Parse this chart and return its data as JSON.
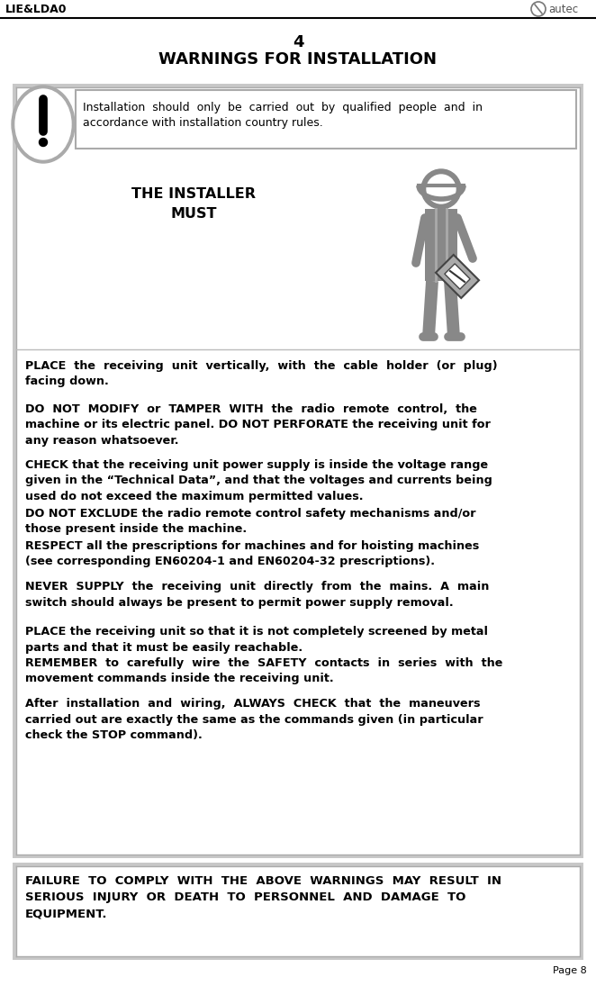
{
  "page_label": "LIE&LDA0",
  "logo_text": "autec",
  "page_number": "Page 8",
  "chapter_number": "4",
  "title": "WARNINGS FOR INSTALLATION",
  "install_note_line1": "Installation  should  only  be  carried  out  by  qualified  people  and  in",
  "install_note_line2": "accordance with installation country rules.",
  "installer_label_line1": "THE INSTALLER",
  "installer_label_line2": "MUST",
  "warnings": [
    "PLACE  the  receiving  unit  vertically,  with  the  cable  holder  (or  plug)\nfacing down.",
    "DO  NOT  MODIFY  or  TAMPER  WITH  the  radio  remote  control,  the\nmachine or its electric panel. DO NOT PERFORATE the receiving unit for\nany reason whatsoever.",
    "CHECK that the receiving unit power supply is inside the voltage range\ngiven in the “Technical Data”, and that the voltages and currents being\nused do not exceed the maximum permitted values.",
    "DO NOT EXCLUDE the radio remote control safety mechanisms and/or\nthose present inside the machine.",
    "RESPECT all the prescriptions for machines and for hoisting machines\n(see corresponding EN60204-1 and EN60204-32 prescriptions).",
    "NEVER  SUPPLY  the  receiving  unit  directly  from  the  mains.  A  main\nswitch should always be present to permit power supply removal.",
    "PLACE the receiving unit so that it is not completely screened by metal\nparts and that it must be easily reachable.",
    "REMEMBER  to  carefully  wire  the  SAFETY  contacts  in  series  with  the\nmovement commands inside the receiving unit.",
    "After  installation  and  wiring,  ALWAYS  CHECK  that  the  maneuvers\ncarried out are exactly the same as the commands given (in particular\ncheck the STOP command)."
  ],
  "failure_text_line1": "FAILURE  TO  COMPLY  WITH  THE  ABOVE  WARNINGS  MAY  RESULT  IN",
  "failure_text_line2": "SERIOUS  INJURY  OR  DEATH  TO  PERSONNEL  AND  DAMAGE  TO",
  "failure_text_line3": "EQUIPMENT.",
  "header_line_color": "#000000",
  "box_border_dark": "#888888",
  "box_border_light": "#bbbbbb",
  "excl_outer_color": "#999999",
  "excl_inner_color": "#ffffff",
  "figure_color": "#888888",
  "figure_dark_color": "#666666",
  "text_color": "#000000",
  "bg_color": "#ffffff",
  "gray_line_color": "#aaaaaa"
}
